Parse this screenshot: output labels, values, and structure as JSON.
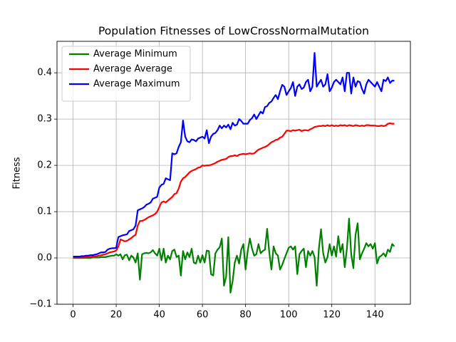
{
  "chart_data": {
    "type": "line",
    "title": "Population Fitnesses of LowCrossNormalMutation",
    "ylabel": "Fitness",
    "x": [
      0,
      1,
      2,
      3,
      4,
      5,
      6,
      7,
      8,
      9,
      10,
      11,
      12,
      13,
      14,
      15,
      16,
      17,
      18,
      19,
      20,
      21,
      22,
      23,
      24,
      25,
      26,
      27,
      28,
      29,
      30,
      31,
      32,
      33,
      34,
      35,
      36,
      37,
      38,
      39,
      40,
      41,
      42,
      43,
      44,
      45,
      46,
      47,
      48,
      49,
      50,
      51,
      52,
      53,
      54,
      55,
      56,
      57,
      58,
      59,
      60,
      61,
      62,
      63,
      64,
      65,
      66,
      67,
      68,
      69,
      70,
      71,
      72,
      73,
      74,
      75,
      76,
      77,
      78,
      79,
      80,
      81,
      82,
      83,
      84,
      85,
      86,
      87,
      88,
      89,
      90,
      91,
      92,
      93,
      94,
      95,
      96,
      97,
      98,
      99,
      100,
      101,
      102,
      103,
      104,
      105,
      106,
      107,
      108,
      109,
      110,
      111,
      112,
      113,
      114,
      115,
      116,
      117,
      118,
      119,
      120,
      121,
      122,
      123,
      124,
      125,
      126,
      127,
      128,
      129,
      130,
      131,
      132,
      133,
      134,
      135,
      136,
      137,
      138,
      139,
      140,
      141,
      142,
      143,
      144,
      145,
      146,
      147,
      148,
      149
    ],
    "series": [
      {
        "name": "Average Minimum",
        "color": "#008000",
        "values": [
          0,
          0,
          0,
          0,
          0,
          0,
          0,
          0,
          0,
          0.001,
          0.001,
          0.001,
          0.001,
          0.002,
          0.002,
          0.002,
          0.003,
          0.004,
          0.005,
          0.005,
          0.008,
          0.005,
          0.008,
          -0.003,
          0.006,
          0.007,
          -0.005,
          0.005,
          0.001,
          -0.01,
          0.01,
          -0.047,
          0.008,
          0.01,
          0.011,
          0.01,
          0.012,
          0.017,
          0.01,
          0.005,
          0.02,
          -0.005,
          0.02,
          -0.01,
          0.005,
          -0.003,
          0.015,
          0.018,
          0.002,
          0.005,
          -0.038,
          0.015,
          -0.003,
          0.012,
          0.002,
          0.02,
          -0.01,
          -0.012,
          0.005,
          -0.01,
          0.006,
          -0.01,
          0.016,
          0.015,
          -0.035,
          -0.038,
          0.01,
          0.018,
          0.023,
          0.042,
          -0.06,
          -0.04,
          0.045,
          -0.075,
          -0.05,
          -0.01,
          0.005,
          -0.012,
          0.018,
          0.03,
          -0.025,
          0.015,
          0.042,
          0.02,
          0.005,
          0.008,
          0.03,
          0.01,
          0.015,
          0.018,
          0.063,
          0.012,
          -0.025,
          0.025,
          0.01,
          0.005,
          -0.025,
          -0.015,
          -0.002,
          0.01,
          0.022,
          0.025,
          0.018,
          0.025,
          -0.035,
          0.008,
          0.015,
          0.02,
          -0.02,
          0.015,
          0.005,
          0.015,
          0.002,
          -0.06,
          0.02,
          0.062,
          0.01,
          -0.01,
          0.002,
          0.03,
          0.005,
          0.025,
          0.003,
          0.047,
          0.012,
          0.03,
          -0.02,
          0.02,
          0.085,
          0.008,
          -0.022,
          0.05,
          0.075,
          -0.003,
          0.01,
          0.02,
          0.032,
          0.025,
          0.03,
          0.02,
          0.032,
          -0.012,
          0.002,
          0.005,
          0.01,
          0.003,
          0.018,
          0.013,
          0.03,
          0.025
        ]
      },
      {
        "name": "Average Average",
        "color": "#ff0000",
        "values": [
          0.001,
          0.001,
          0.001,
          0.001,
          0.001,
          0.001,
          0.002,
          0.002,
          0.002,
          0.003,
          0.003,
          0.004,
          0.005,
          0.006,
          0.007,
          0.008,
          0.01,
          0.012,
          0.013,
          0.014,
          0.016,
          0.025,
          0.04,
          0.038,
          0.036,
          0.037,
          0.04,
          0.043,
          0.047,
          0.05,
          0.07,
          0.08,
          0.08,
          0.082,
          0.085,
          0.088,
          0.09,
          0.092,
          0.095,
          0.1,
          0.11,
          0.12,
          0.122,
          0.12,
          0.124,
          0.128,
          0.132,
          0.138,
          0.14,
          0.15,
          0.165,
          0.172,
          0.175,
          0.18,
          0.185,
          0.188,
          0.19,
          0.192,
          0.195,
          0.196,
          0.2,
          0.199,
          0.2,
          0.2,
          0.201,
          0.203,
          0.205,
          0.208,
          0.21,
          0.212,
          0.213,
          0.214,
          0.218,
          0.22,
          0.22,
          0.222,
          0.22,
          0.223,
          0.224,
          0.225,
          0.224,
          0.225,
          0.226,
          0.225,
          0.226,
          0.23,
          0.234,
          0.236,
          0.238,
          0.24,
          0.242,
          0.246,
          0.25,
          0.252,
          0.255,
          0.256,
          0.26,
          0.262,
          0.268,
          0.275,
          0.275,
          0.274,
          0.276,
          0.275,
          0.276,
          0.277,
          0.274,
          0.276,
          0.276,
          0.275,
          0.278,
          0.28,
          0.283,
          0.284,
          0.285,
          0.285,
          0.286,
          0.285,
          0.287,
          0.285,
          0.287,
          0.285,
          0.286,
          0.285,
          0.287,
          0.286,
          0.287,
          0.285,
          0.287,
          0.286,
          0.285,
          0.287,
          0.286,
          0.285,
          0.286,
          0.285,
          0.287,
          0.287,
          0.286,
          0.286,
          0.286,
          0.285,
          0.285,
          0.286,
          0.285,
          0.286,
          0.29,
          0.291,
          0.29,
          0.29
        ]
      },
      {
        "name": "Average Maximum",
        "color": "#0000ff",
        "values": [
          0.003,
          0.003,
          0.003,
          0.003,
          0.004,
          0.004,
          0.005,
          0.005,
          0.006,
          0.006,
          0.007,
          0.008,
          0.01,
          0.012,
          0.012,
          0.013,
          0.018,
          0.02,
          0.021,
          0.021,
          0.022,
          0.045,
          0.047,
          0.049,
          0.05,
          0.051,
          0.058,
          0.06,
          0.062,
          0.07,
          0.103,
          0.105,
          0.107,
          0.11,
          0.115,
          0.117,
          0.12,
          0.128,
          0.13,
          0.132,
          0.152,
          0.158,
          0.16,
          0.172,
          0.17,
          0.168,
          0.226,
          0.224,
          0.226,
          0.24,
          0.25,
          0.297,
          0.262,
          0.252,
          0.25,
          0.256,
          0.255,
          0.252,
          0.258,
          0.26,
          0.262,
          0.258,
          0.276,
          0.248,
          0.262,
          0.268,
          0.27,
          0.276,
          0.286,
          0.28,
          0.286,
          0.282,
          0.288,
          0.278,
          0.292,
          0.286,
          0.288,
          0.3,
          0.296,
          0.29,
          0.29,
          0.29,
          0.298,
          0.302,
          0.31,
          0.3,
          0.308,
          0.316,
          0.312,
          0.326,
          0.328,
          0.335,
          0.338,
          0.346,
          0.352,
          0.343,
          0.36,
          0.374,
          0.37,
          0.352,
          0.36,
          0.367,
          0.38,
          0.35,
          0.37,
          0.375,
          0.365,
          0.368,
          0.38,
          0.385,
          0.36,
          0.37,
          0.443,
          0.37,
          0.378,
          0.385,
          0.37,
          0.375,
          0.397,
          0.36,
          0.368,
          0.38,
          0.385,
          0.38,
          0.375,
          0.39,
          0.36,
          0.4,
          0.4,
          0.355,
          0.39,
          0.37,
          0.382,
          0.38,
          0.365,
          0.355,
          0.375,
          0.385,
          0.38,
          0.375,
          0.37,
          0.38,
          0.37,
          0.36,
          0.385,
          0.382,
          0.39,
          0.378,
          0.383,
          0.383
        ]
      }
    ],
    "xlim": [
      -7.45,
      156.45
    ],
    "xticks": [
      0,
      20,
      40,
      60,
      80,
      100,
      120,
      140
    ],
    "ylim": [
      -0.1,
      0.468
    ],
    "yticks": [
      {
        "value": -0.1,
        "label": "−0.1"
      },
      {
        "value": 0,
        "label": "0.0"
      },
      0.1,
      0.2,
      0.3,
      0.4
    ],
    "grid": true,
    "legend": "upper left"
  }
}
